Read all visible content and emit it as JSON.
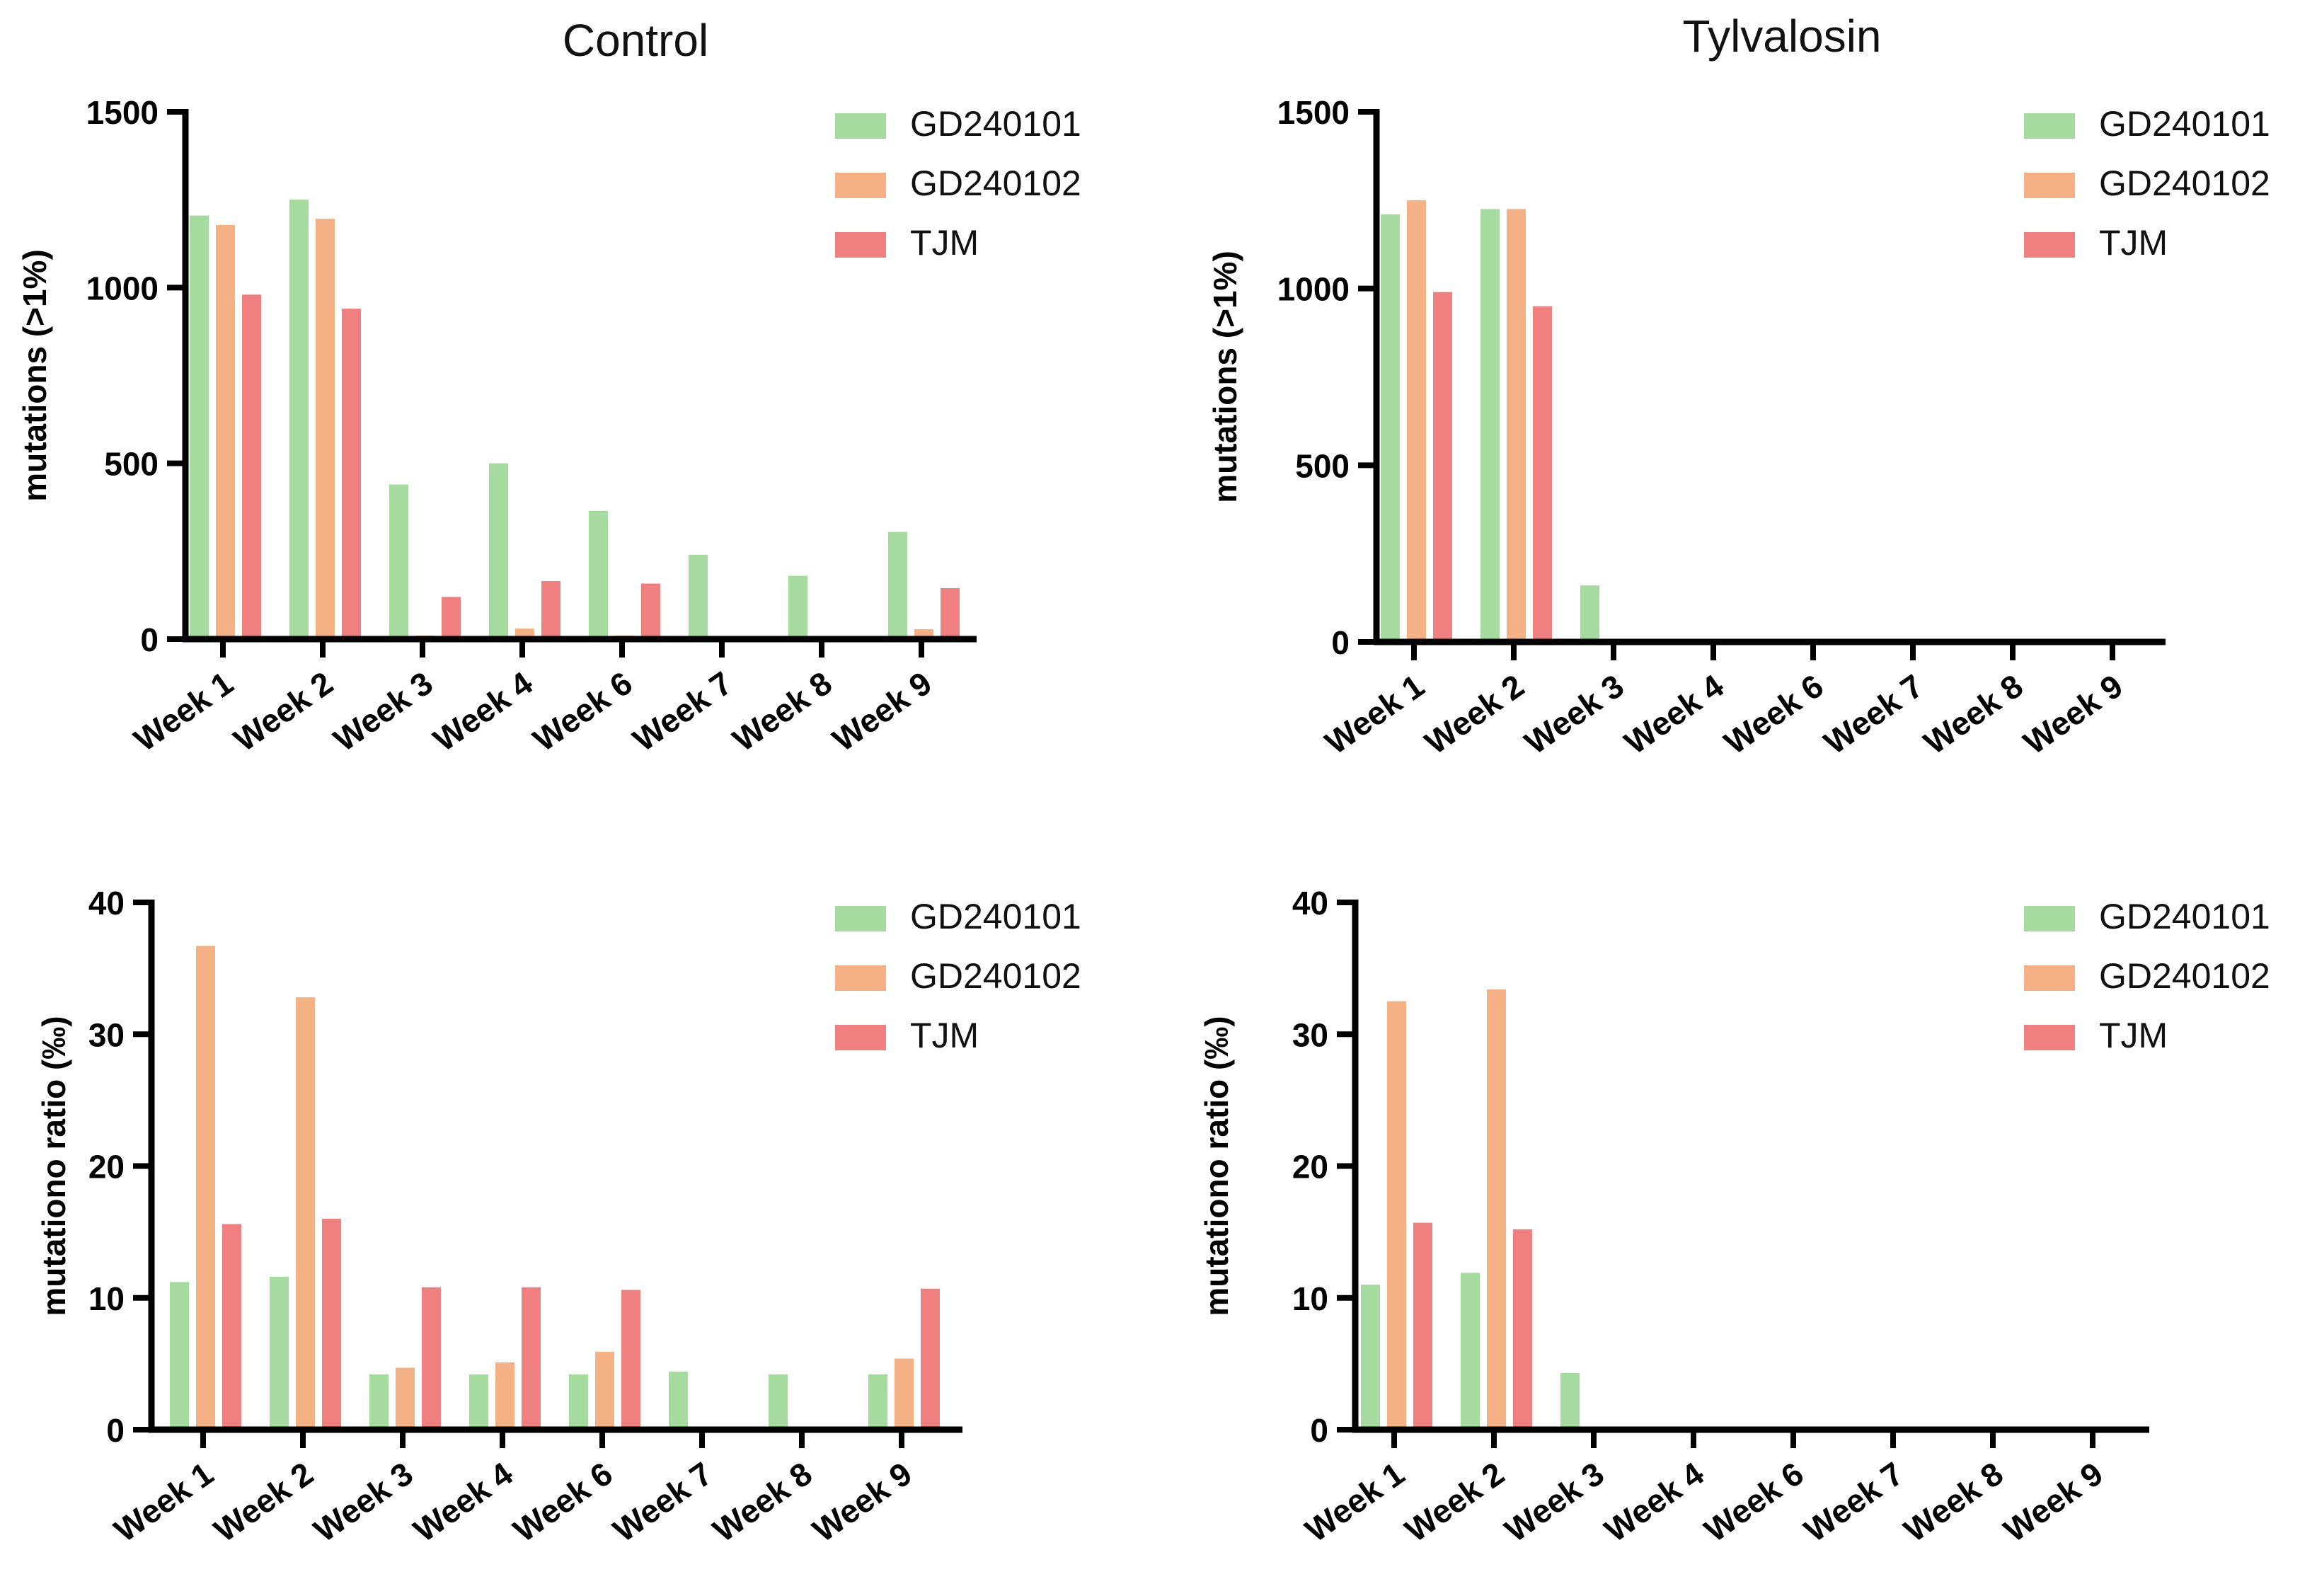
{
  "figure": {
    "column_titles": {
      "left": "Control",
      "right": "Tylvalosin"
    }
  },
  "chart_data": [
    {
      "type": "bar",
      "title": "Control",
      "xlabel": "",
      "ylabel": "mutations (>1%)",
      "ylim": [
        0,
        1500
      ],
      "yticks": [
        "0",
        "500",
        "1000",
        "1500"
      ],
      "ytick_values": [
        0,
        500,
        1000,
        1500
      ],
      "categories": [
        "Week 1",
        "Week 2",
        "Week 3",
        "Week 4",
        "Week 6",
        "Week 7",
        "Week 8",
        "Week 9"
      ],
      "legend_position": "top-right",
      "series": [
        {
          "name": "GD240101",
          "color": "#a6dba0",
          "values": [
            1205,
            1250,
            440,
            500,
            365,
            240,
            180,
            305
          ]
        },
        {
          "name": "GD240102",
          "color": "#f4b183",
          "values": [
            1178,
            1196,
            10,
            30,
            10,
            0,
            0,
            28
          ]
        },
        {
          "name": "TJM",
          "color": "#f08080",
          "values": [
            980,
            940,
            120,
            165,
            158,
            0,
            0,
            145
          ]
        }
      ]
    },
    {
      "type": "bar",
      "title": "Tylvalosin",
      "xlabel": "",
      "ylabel": "mutations (>1%)",
      "ylim": [
        0,
        1500
      ],
      "yticks": [
        "0",
        "500",
        "1000",
        "1500"
      ],
      "ytick_values": [
        0,
        500,
        1000,
        1500
      ],
      "categories": [
        "Week 1",
        "Week 2",
        "Week 3",
        "Week 4",
        "Week 6",
        "Week 7",
        "Week 8",
        "Week 9"
      ],
      "legend_position": "top-right",
      "series": [
        {
          "name": "GD240101",
          "color": "#a6dba0",
          "values": [
            1210,
            1225,
            160,
            0,
            0,
            0,
            0,
            0
          ]
        },
        {
          "name": "GD240102",
          "color": "#f4b183",
          "values": [
            1250,
            1225,
            0,
            0,
            0,
            0,
            0,
            0
          ]
        },
        {
          "name": "TJM",
          "color": "#f08080",
          "values": [
            990,
            950,
            0,
            0,
            0,
            0,
            0,
            0
          ]
        }
      ]
    },
    {
      "type": "bar",
      "title": "",
      "xlabel": "",
      "ylabel": "mutationo ratio (‰)",
      "ylim": [
        0,
        40
      ],
      "yticks": [
        "0",
        "10",
        "20",
        "30",
        "40"
      ],
      "ytick_values": [
        0,
        10,
        20,
        30,
        40
      ],
      "categories": [
        "Week 1",
        "Week 2",
        "Week 3",
        "Week 4",
        "Week 6",
        "Week 7",
        "Week 8",
        "Week 9"
      ],
      "legend_position": "top-right",
      "series": [
        {
          "name": "GD240101",
          "color": "#a6dba0",
          "values": [
            11.2,
            11.6,
            4.2,
            4.2,
            4.2,
            4.4,
            4.2,
            4.2
          ]
        },
        {
          "name": "GD240102",
          "color": "#f4b183",
          "values": [
            36.7,
            32.8,
            4.7,
            5.1,
            5.9,
            0,
            0,
            5.4
          ]
        },
        {
          "name": "TJM",
          "color": "#f08080",
          "values": [
            15.6,
            16.0,
            10.8,
            10.8,
            10.6,
            0,
            0,
            10.7
          ]
        }
      ]
    },
    {
      "type": "bar",
      "title": "",
      "xlabel": "",
      "ylabel": "mutationo ratio (‰)",
      "ylim": [
        0,
        40
      ],
      "yticks": [
        "0",
        "10",
        "20",
        "30",
        "40"
      ],
      "ytick_values": [
        0,
        10,
        20,
        30,
        40
      ],
      "categories": [
        "Week 1",
        "Week 2",
        "Week 3",
        "Week 4",
        "Week 6",
        "Week 7",
        "Week 8",
        "Week 9"
      ],
      "legend_position": "top-right",
      "series": [
        {
          "name": "GD240101",
          "color": "#a6dba0",
          "values": [
            11.0,
            11.9,
            4.3,
            0,
            0,
            0,
            0,
            0
          ]
        },
        {
          "name": "GD240102",
          "color": "#f4b183",
          "values": [
            32.5,
            33.4,
            0,
            0,
            0,
            0,
            0,
            0
          ]
        },
        {
          "name": "TJM",
          "color": "#f08080",
          "values": [
            15.7,
            15.2,
            0,
            0,
            0,
            0,
            0,
            0
          ]
        }
      ]
    }
  ]
}
